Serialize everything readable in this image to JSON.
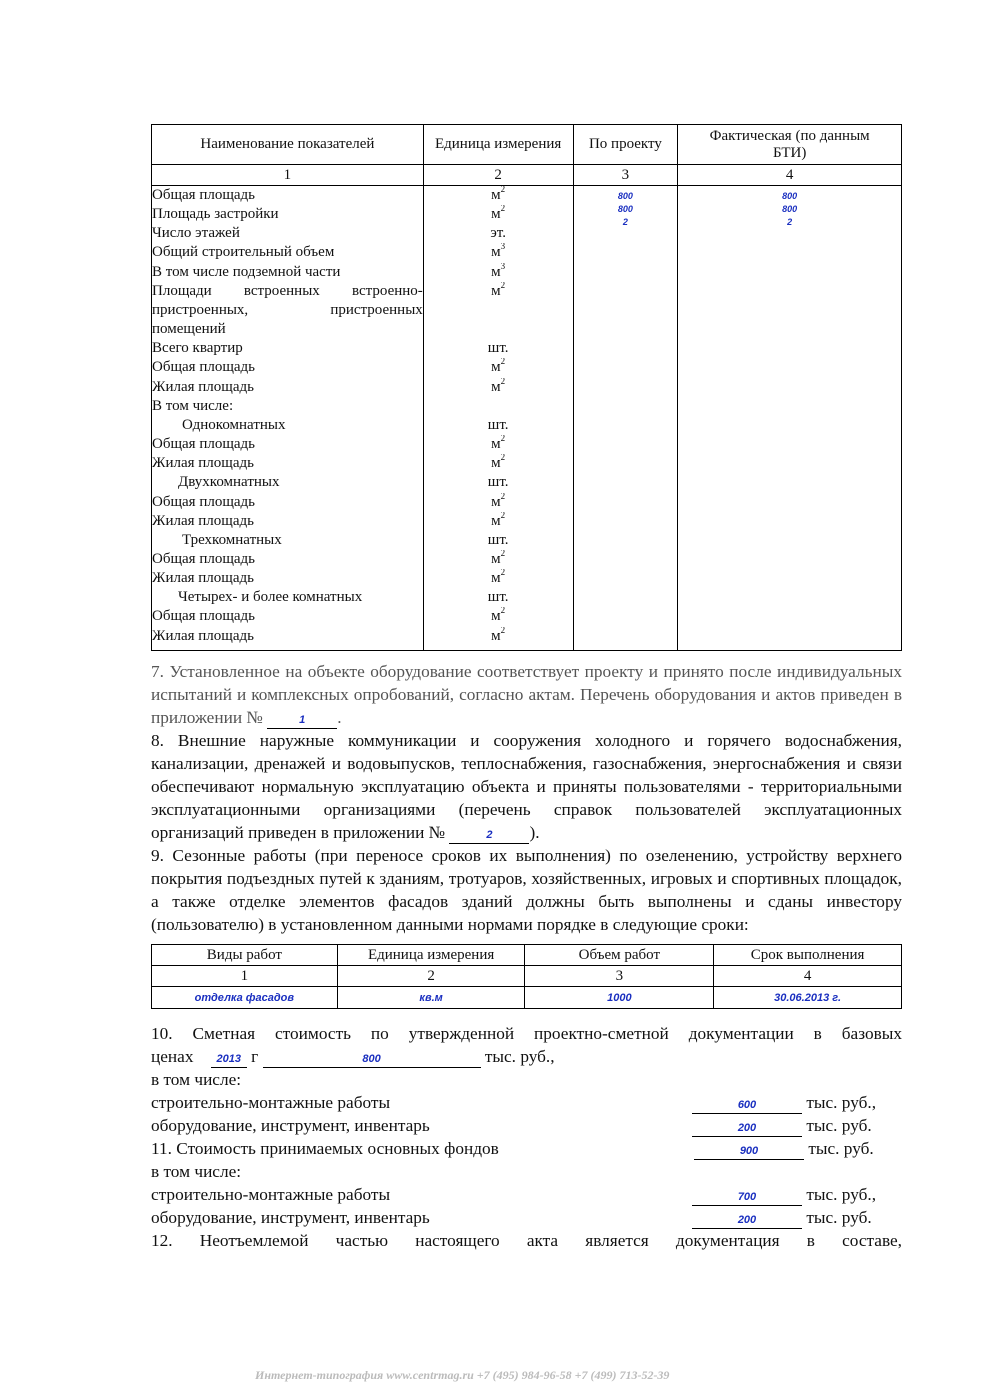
{
  "table1": {
    "headers": [
      "Наименование показателей",
      "Единица измерения",
      "По проекту",
      "Фактическая (по данным БТИ)"
    ],
    "col_numbers": [
      "1",
      "2",
      "3",
      "4"
    ],
    "rows": [
      {
        "name": "Общая площадь",
        "unit": "м",
        "sup": "2",
        "project": "800",
        "actual": "800"
      },
      {
        "name": "Площадь застройки",
        "unit": "м",
        "sup": "2",
        "project": "800",
        "actual": "800"
      },
      {
        "name": "Число этажей",
        "unit": "эт.",
        "sup": "",
        "project": "2",
        "actual": "2"
      },
      {
        "name": "Общий строительный объем",
        "unit": "м",
        "sup": "3"
      },
      {
        "name": "В том числе подземной части",
        "unit": "м",
        "sup": "3"
      },
      {
        "name": "Площади встроенных встроенно-пристроенных, пристроенных помещений",
        "name_lines": [
          "Площади встроенных встроенно-",
          "пристроенных, пристроенных",
          "помещений"
        ],
        "unit": "м",
        "sup": "2"
      },
      {
        "name": "Всего квартир",
        "unit": "шт."
      },
      {
        "name": "Общая площадь",
        "unit": "м",
        "sup": "2"
      },
      {
        "name": "Жилая площадь",
        "unit": "м",
        "sup": "2"
      },
      {
        "name": "В том числе:",
        "unit": ""
      },
      {
        "name": "Однокомнатных",
        "unit": "шт."
      },
      {
        "name": "Общая площадь",
        "unit": "м",
        "sup": "2"
      },
      {
        "name": "Жилая площадь",
        "unit": "м",
        "sup": "2"
      },
      {
        "name": "Двухкомнатных",
        "unit": "шт."
      },
      {
        "name": "Общая площадь",
        "unit": "м",
        "sup": "2"
      },
      {
        "name": "Жилая площадь",
        "unit": "м",
        "sup": "2"
      },
      {
        "name": "Трехкомнатных",
        "unit": "шт."
      },
      {
        "name": "Общая площадь",
        "unit": "м",
        "sup": "2"
      },
      {
        "name": "Жилая площадь",
        "unit": "м",
        "sup": "2"
      },
      {
        "name": "Четырех- и более комнатных",
        "unit": "шт."
      },
      {
        "name": "Общая площадь",
        "unit": "м",
        "sup": "2"
      },
      {
        "name": "Жилая площадь",
        "unit": "м",
        "sup": "2"
      }
    ]
  },
  "section7": {
    "text": "7. Установленное на объекте оборудование соответствует проекту и принято после индивидуальных испытаний и комплексных опробований, согласно актам. Перечень оборудования и актов приведен в приложении №",
    "appendix_no": "1",
    "end": "."
  },
  "section8": {
    "text": "8. Внешние наружные коммуникации и сооружения холодного и горячего водоснабжения, канализации, дренажей и водовыпусков, теплоснабжения, газоснабжения, энергоснабжения и связи обеспечивают нормальную эксплуатацию объекта и приняты пользователями - территориальными эксплуатационными организациями (перечень справок пользователей эксплуатационных организаций приведен в приложении №",
    "appendix_no": "2",
    "end": ")."
  },
  "section9": {
    "text": "9. Сезонные работы (при переносе сроков их выполнения) по озеленению, устройству верхнего покрытия подъездных путей к зданиям, тротуаров, хозяйственных, игровых и спортивных площадок, а также отделке элементов фасадов зданий должны быть выполнены и сданы инвестору (пользователю) в установленном данными нормами порядке в следующие сроки:"
  },
  "table2": {
    "headers": [
      "Виды работ",
      "Единица измерения",
      "Объем работ",
      "Срок выполнения"
    ],
    "col_numbers": [
      "1",
      "2",
      "3",
      "4"
    ],
    "row": [
      "отделка фасадов",
      "кв.м",
      "1000",
      "30.06.2013 г."
    ]
  },
  "section10": {
    "line1": "10. Сметная стоимость по утвержденной проектно-сметной документации в базовых",
    "prices_label": "ценах",
    "year": "2013",
    "year_suffix": "г",
    "amount": "800",
    "unit": "тыс. руб.,",
    "including": "в том числе:",
    "items": [
      {
        "label": "строительно-монтажные работы",
        "value": "600",
        "unit": "тыс. руб.,"
      },
      {
        "label": "оборудование, инструмент, инвентарь",
        "value": "200",
        "unit": "тыс. руб."
      }
    ]
  },
  "section11": {
    "label": "11. Стоимость принимаемых основных фондов",
    "value": "900",
    "unit": "тыс. руб.",
    "including": "в том числе:",
    "items": [
      {
        "label": "строительно-монтажные работы",
        "value": "700",
        "unit": "тыс. руб.,"
      },
      {
        "label": "оборудование, инструмент, инвентарь",
        "value": "200",
        "unit": "тыс. руб."
      }
    ]
  },
  "section12": {
    "text": "12. Неотъемлемой частью настоящего акта является документация в составе,"
  },
  "watermark": "www.CentrMag.ru",
  "footer": "Интернет-типография  www.centrmag.ru   +7 (495) 984-96-58  +7 (499) 713-52-39",
  "colors": {
    "handwriting": "#1a2fc0",
    "watermark": "#43d143"
  }
}
